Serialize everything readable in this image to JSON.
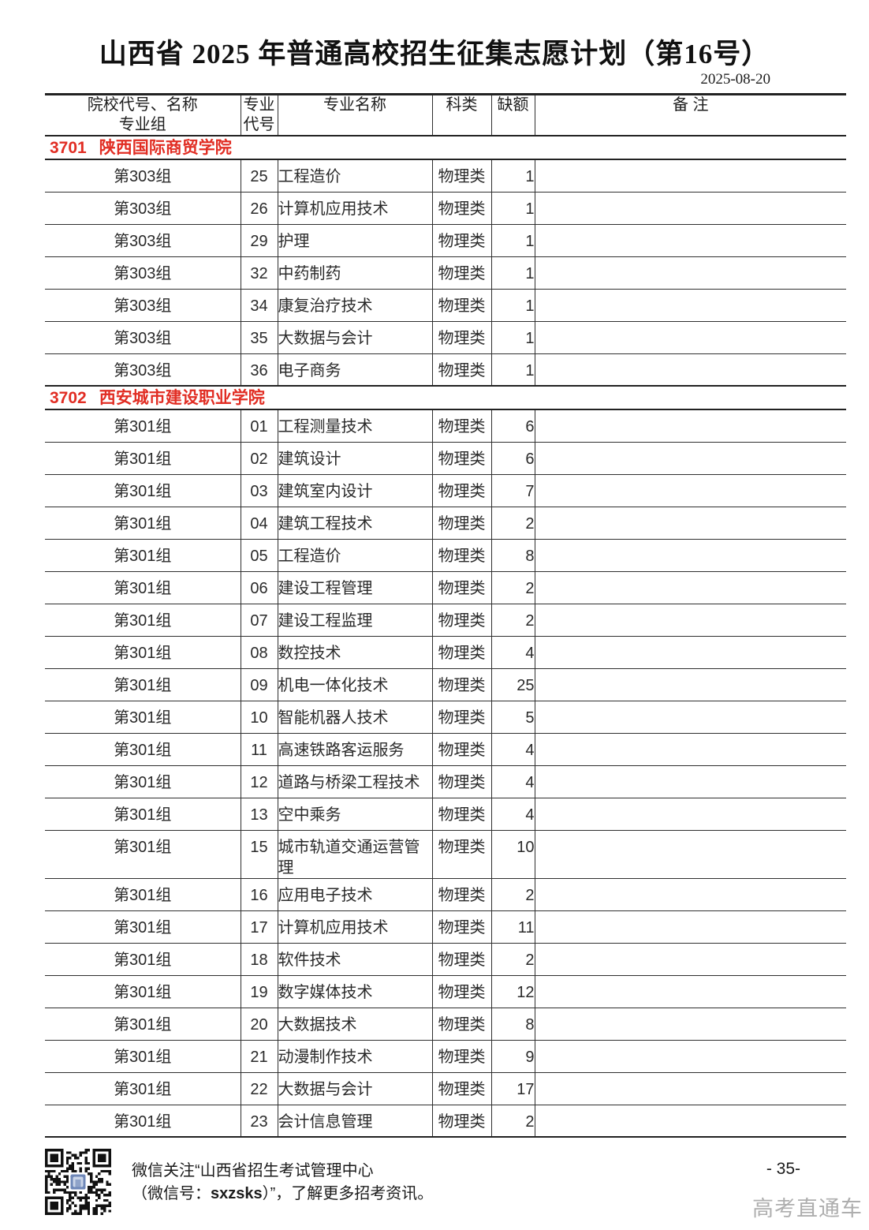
{
  "page": {
    "title": "山西省 2025 年普通高校招生征集志愿计划（第16号）",
    "date": "2025-08-20",
    "page_number": "- 35-",
    "watermark": "高考直通车"
  },
  "colors": {
    "section_red": "#e12d23",
    "watermark_gray": "#aeaeae",
    "qr_logo_blue": "#6e87b8"
  },
  "table": {
    "headers": {
      "col1_line1": "院校代号、名称",
      "col1_line2": "专业组",
      "col2_line1": "专业",
      "col2_line2": "代号",
      "col3": "专业名称",
      "col4": "科类",
      "col5": "缺额",
      "col6": "备  注"
    },
    "sections": [
      {
        "code": "3701",
        "name": "陕西国际商贸学院",
        "rows": [
          {
            "group": "第303组",
            "major_code": "25",
            "major_name": "工程造价",
            "subject": "物理类",
            "vacancy": "1",
            "note": ""
          },
          {
            "group": "第303组",
            "major_code": "26",
            "major_name": "计算机应用技术",
            "subject": "物理类",
            "vacancy": "1",
            "note": ""
          },
          {
            "group": "第303组",
            "major_code": "29",
            "major_name": "护理",
            "subject": "物理类",
            "vacancy": "1",
            "note": ""
          },
          {
            "group": "第303组",
            "major_code": "32",
            "major_name": "中药制药",
            "subject": "物理类",
            "vacancy": "1",
            "note": ""
          },
          {
            "group": "第303组",
            "major_code": "34",
            "major_name": "康复治疗技术",
            "subject": "物理类",
            "vacancy": "1",
            "note": ""
          },
          {
            "group": "第303组",
            "major_code": "35",
            "major_name": "大数据与会计",
            "subject": "物理类",
            "vacancy": "1",
            "note": ""
          },
          {
            "group": "第303组",
            "major_code": "36",
            "major_name": "电子商务",
            "subject": "物理类",
            "vacancy": "1",
            "note": ""
          }
        ]
      },
      {
        "code": "3702",
        "name": "西安城市建设职业学院",
        "rows": [
          {
            "group": "第301组",
            "major_code": "01",
            "major_name": "工程测量技术",
            "subject": "物理类",
            "vacancy": "6",
            "note": ""
          },
          {
            "group": "第301组",
            "major_code": "02",
            "major_name": "建筑设计",
            "subject": "物理类",
            "vacancy": "6",
            "note": ""
          },
          {
            "group": "第301组",
            "major_code": "03",
            "major_name": "建筑室内设计",
            "subject": "物理类",
            "vacancy": "7",
            "note": ""
          },
          {
            "group": "第301组",
            "major_code": "04",
            "major_name": "建筑工程技术",
            "subject": "物理类",
            "vacancy": "2",
            "note": ""
          },
          {
            "group": "第301组",
            "major_code": "05",
            "major_name": "工程造价",
            "subject": "物理类",
            "vacancy": "8",
            "note": ""
          },
          {
            "group": "第301组",
            "major_code": "06",
            "major_name": "建设工程管理",
            "subject": "物理类",
            "vacancy": "2",
            "note": ""
          },
          {
            "group": "第301组",
            "major_code": "07",
            "major_name": "建设工程监理",
            "subject": "物理类",
            "vacancy": "2",
            "note": ""
          },
          {
            "group": "第301组",
            "major_code": "08",
            "major_name": "数控技术",
            "subject": "物理类",
            "vacancy": "4",
            "note": ""
          },
          {
            "group": "第301组",
            "major_code": "09",
            "major_name": "机电一体化技术",
            "subject": "物理类",
            "vacancy": "25",
            "note": ""
          },
          {
            "group": "第301组",
            "major_code": "10",
            "major_name": "智能机器人技术",
            "subject": "物理类",
            "vacancy": "5",
            "note": ""
          },
          {
            "group": "第301组",
            "major_code": "11",
            "major_name": "高速铁路客运服务",
            "subject": "物理类",
            "vacancy": "4",
            "note": ""
          },
          {
            "group": "第301组",
            "major_code": "12",
            "major_name": "道路与桥梁工程技术",
            "subject": "物理类",
            "vacancy": "4",
            "note": ""
          },
          {
            "group": "第301组",
            "major_code": "13",
            "major_name": "空中乘务",
            "subject": "物理类",
            "vacancy": "4",
            "note": ""
          },
          {
            "group": "第301组",
            "major_code": "15",
            "major_name": "城市轨道交通运营管理",
            "subject": "物理类",
            "vacancy": "10",
            "note": ""
          },
          {
            "group": "第301组",
            "major_code": "16",
            "major_name": "应用电子技术",
            "subject": "物理类",
            "vacancy": "2",
            "note": ""
          },
          {
            "group": "第301组",
            "major_code": "17",
            "major_name": "计算机应用技术",
            "subject": "物理类",
            "vacancy": "11",
            "note": ""
          },
          {
            "group": "第301组",
            "major_code": "18",
            "major_name": "软件技术",
            "subject": "物理类",
            "vacancy": "2",
            "note": ""
          },
          {
            "group": "第301组",
            "major_code": "19",
            "major_name": "数字媒体技术",
            "subject": "物理类",
            "vacancy": "12",
            "note": ""
          },
          {
            "group": "第301组",
            "major_code": "20",
            "major_name": "大数据技术",
            "subject": "物理类",
            "vacancy": "8",
            "note": ""
          },
          {
            "group": "第301组",
            "major_code": "21",
            "major_name": "动漫制作技术",
            "subject": "物理类",
            "vacancy": "9",
            "note": ""
          },
          {
            "group": "第301组",
            "major_code": "22",
            "major_name": "大数据与会计",
            "subject": "物理类",
            "vacancy": "17",
            "note": ""
          },
          {
            "group": "第301组",
            "major_code": "23",
            "major_name": "会计信息管理",
            "subject": "物理类",
            "vacancy": "2",
            "note": ""
          }
        ]
      }
    ]
  },
  "footer": {
    "line1": "微信关注“山西省招生考试管理中心",
    "line2_prefix": "（微信号：",
    "wechat_id": "sxzsks",
    "line2_suffix": "）”，了解更多招考资讯。"
  }
}
